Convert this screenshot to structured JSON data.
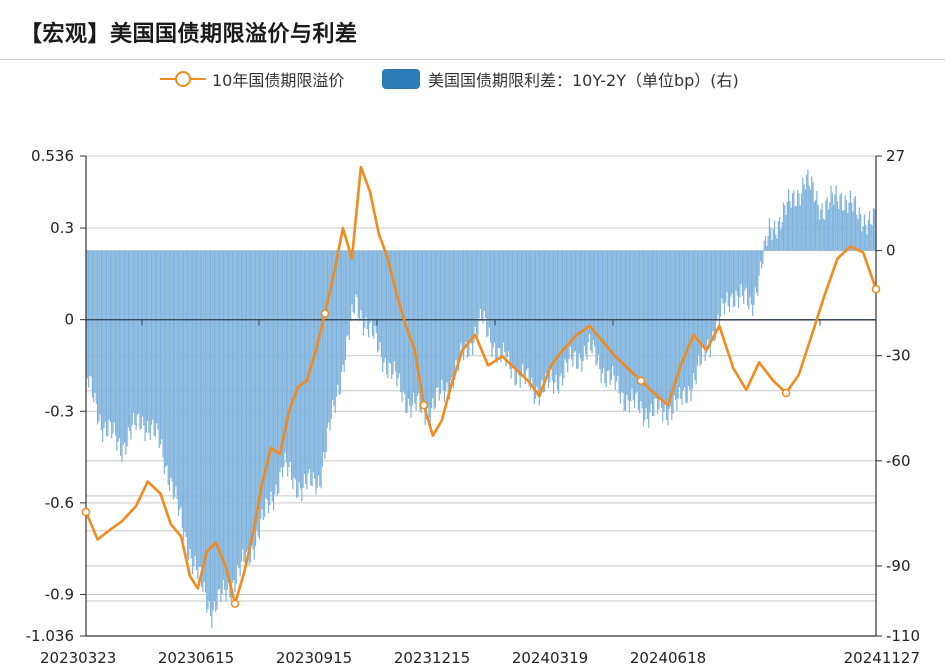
{
  "header": {
    "title": "【宏观】美国国债期限溢价与利差"
  },
  "legend": {
    "line_label": "10年国债期限溢价",
    "bar_label": "美国国债期限利差：10Y-2Y（单位bp）(右)"
  },
  "colors": {
    "line": "#f28a1e",
    "bar": "#7fb3dd",
    "bar_edge": "#5b9bd1",
    "legend_bar": "#2c7bb6",
    "grid": "#c8c8c8",
    "axis": "#333333"
  },
  "chart_data": {
    "type": "bar+line",
    "x_tick_labels": [
      "20230323",
      "20230615",
      "20230915",
      "20231215",
      "20240319",
      "20240618",
      "20241127"
    ],
    "y_left": {
      "range": [
        -1.036,
        0.536
      ],
      "tick_labels": [
        "0.536",
        "0.3",
        "0",
        "-0.3",
        "-0.6",
        "-0.9",
        "-1.036"
      ],
      "tick_values": [
        0.536,
        0.3,
        0,
        -0.3,
        -0.6,
        -0.9,
        -1.036
      ]
    },
    "y_right": {
      "range": [
        -110,
        27
      ],
      "tick_labels": [
        "27",
        "0",
        "-30",
        "-60",
        "-90",
        "-110"
      ],
      "tick_values": [
        27,
        0,
        -30,
        -60,
        -90,
        -110
      ]
    },
    "grid": true,
    "line_series": {
      "name": "10年国债期限溢价",
      "axis": "left",
      "points": [
        [
          "2023-03-23",
          -0.63
        ],
        [
          "2023-04-01",
          -0.72
        ],
        [
          "2023-04-10",
          -0.69
        ],
        [
          "2023-04-20",
          -0.66
        ],
        [
          "2023-05-01",
          -0.61
        ],
        [
          "2023-05-10",
          -0.53
        ],
        [
          "2023-05-20",
          -0.57
        ],
        [
          "2023-05-28",
          -0.67
        ],
        [
          "2023-06-05",
          -0.71
        ],
        [
          "2023-06-12",
          -0.84
        ],
        [
          "2023-06-18",
          -0.88
        ],
        [
          "2023-06-25",
          -0.76
        ],
        [
          "2023-07-02",
          -0.73
        ],
        [
          "2023-07-10",
          -0.81
        ],
        [
          "2023-07-17",
          -0.93
        ],
        [
          "2023-07-24",
          -0.83
        ],
        [
          "2023-07-31",
          -0.7
        ],
        [
          "2023-08-07",
          -0.54
        ],
        [
          "2023-08-14",
          -0.42
        ],
        [
          "2023-08-21",
          -0.44
        ],
        [
          "2023-08-28",
          -0.3
        ],
        [
          "2023-09-04",
          -0.22
        ],
        [
          "2023-09-11",
          -0.2
        ],
        [
          "2023-09-18",
          -0.1
        ],
        [
          "2023-09-25",
          0.02
        ],
        [
          "2023-10-02",
          0.15
        ],
        [
          "2023-10-09",
          0.3
        ],
        [
          "2023-10-16",
          0.2
        ],
        [
          "2023-10-23",
          0.5
        ],
        [
          "2023-10-30",
          0.42
        ],
        [
          "2023-11-06",
          0.28
        ],
        [
          "2023-11-13",
          0.2
        ],
        [
          "2023-11-20",
          0.08
        ],
        [
          "2023-11-27",
          -0.02
        ],
        [
          "2023-12-04",
          -0.1
        ],
        [
          "2023-12-11",
          -0.28
        ],
        [
          "2023-12-18",
          -0.38
        ],
        [
          "2023-12-25",
          -0.33
        ],
        [
          "2024-01-01",
          -0.22
        ],
        [
          "2024-01-10",
          -0.1
        ],
        [
          "2024-01-20",
          -0.05
        ],
        [
          "2024-01-30",
          -0.15
        ],
        [
          "2024-02-10",
          -0.12
        ],
        [
          "2024-02-20",
          -0.16
        ],
        [
          "2024-03-01",
          -0.2
        ],
        [
          "2024-03-10",
          -0.25
        ],
        [
          "2024-03-19",
          -0.15
        ],
        [
          "2024-03-28",
          -0.1
        ],
        [
          "2024-04-08",
          -0.05
        ],
        [
          "2024-04-18",
          -0.02
        ],
        [
          "2024-04-28",
          -0.07
        ],
        [
          "2024-05-08",
          -0.12
        ],
        [
          "2024-05-18",
          -0.16
        ],
        [
          "2024-05-28",
          -0.2
        ],
        [
          "2024-06-07",
          -0.24
        ],
        [
          "2024-06-18",
          -0.28
        ],
        [
          "2024-06-28",
          -0.15
        ],
        [
          "2024-07-08",
          -0.05
        ],
        [
          "2024-07-18",
          -0.1
        ],
        [
          "2024-07-28",
          -0.02
        ],
        [
          "2024-08-08",
          -0.16
        ],
        [
          "2024-08-18",
          -0.23
        ],
        [
          "2024-08-28",
          -0.14
        ],
        [
          "2024-09-08",
          -0.2
        ],
        [
          "2024-09-18",
          -0.24
        ],
        [
          "2024-09-28",
          -0.18
        ],
        [
          "2024-10-08",
          -0.05
        ],
        [
          "2024-10-18",
          0.08
        ],
        [
          "2024-10-28",
          0.2
        ],
        [
          "2024-11-07",
          0.24
        ],
        [
          "2024-11-17",
          0.22
        ],
        [
          "2024-11-27",
          0.1
        ]
      ]
    },
    "bar_series": {
      "name": "美国国债期限利差：10Y-2Y（单位bp）",
      "axis": "right",
      "points": [
        [
          "2023-03-23",
          -36
        ],
        [
          "2023-04-05",
          -50
        ],
        [
          "2023-04-20",
          -56
        ],
        [
          "2023-05-05",
          -48
        ],
        [
          "2023-05-20",
          -55
        ],
        [
          "2023-06-01",
          -72
        ],
        [
          "2023-06-15",
          -90
        ],
        [
          "2023-06-29",
          -103
        ],
        [
          "2023-07-13",
          -96
        ],
        [
          "2023-07-27",
          -88
        ],
        [
          "2023-08-10",
          -75
        ],
        [
          "2023-08-24",
          -62
        ],
        [
          "2023-09-07",
          -68
        ],
        [
          "2023-09-21",
          -65
        ],
        [
          "2023-10-05",
          -40
        ],
        [
          "2023-10-19",
          -15
        ],
        [
          "2023-11-02",
          -25
        ],
        [
          "2023-11-16",
          -35
        ],
        [
          "2023-11-30",
          -44
        ],
        [
          "2023-12-14",
          -46
        ],
        [
          "2023-12-28",
          -40
        ],
        [
          "2024-01-11",
          -30
        ],
        [
          "2024-01-25",
          -20
        ],
        [
          "2024-02-08",
          -30
        ],
        [
          "2024-02-22",
          -35
        ],
        [
          "2024-03-07",
          -40
        ],
        [
          "2024-03-21",
          -38
        ],
        [
          "2024-04-04",
          -32
        ],
        [
          "2024-04-18",
          -28
        ],
        [
          "2024-05-02",
          -36
        ],
        [
          "2024-05-16",
          -42
        ],
        [
          "2024-05-30",
          -46
        ],
        [
          "2024-06-13",
          -46
        ],
        [
          "2024-06-27",
          -44
        ],
        [
          "2024-07-11",
          -35
        ],
        [
          "2024-07-25",
          -22
        ],
        [
          "2024-08-08",
          -12
        ],
        [
          "2024-08-22",
          -16
        ],
        [
          "2024-09-05",
          5
        ],
        [
          "2024-09-19",
          12
        ],
        [
          "2024-10-03",
          20
        ],
        [
          "2024-10-17",
          12
        ],
        [
          "2024-10-31",
          16
        ],
        [
          "2024-11-14",
          10
        ],
        [
          "2024-11-27",
          8
        ]
      ]
    }
  }
}
